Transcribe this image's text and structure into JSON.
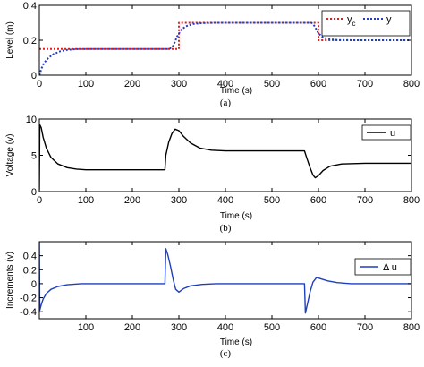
{
  "chart_data": [
    {
      "type": "line",
      "panel_label": "(a)",
      "xlabel": "Time (s)",
      "ylabel": "Level (m)",
      "xlim": [
        0,
        800
      ],
      "ylim": [
        0,
        0.4
      ],
      "xticks": [
        0,
        100,
        200,
        300,
        400,
        500,
        600,
        700,
        800
      ],
      "yticks": [
        0,
        0.2,
        0.4
      ],
      "ytick_labels": [
        "0",
        "0.2",
        "0.4"
      ],
      "grid": false,
      "legend": "top-right",
      "series": [
        {
          "name": "yc",
          "name_main": "y",
          "name_sub": "c",
          "color": "#e41a1c",
          "style": "dotted",
          "points": [
            [
              0,
              0.15
            ],
            [
              300,
              0.15
            ],
            [
              300,
              0.3
            ],
            [
              600,
              0.3
            ],
            [
              600,
              0.2
            ],
            [
              800,
              0.2
            ]
          ]
        },
        {
          "name": "y",
          "color": "#1f3fbf",
          "style": "dotted",
          "points": [
            [
              0,
              0.0
            ],
            [
              5,
              0.04
            ],
            [
              10,
              0.07
            ],
            [
              20,
              0.1
            ],
            [
              30,
              0.12
            ],
            [
              45,
              0.137
            ],
            [
              60,
              0.145
            ],
            [
              80,
              0.149
            ],
            [
              100,
              0.15
            ],
            [
              280,
              0.15
            ],
            [
              288,
              0.17
            ],
            [
              296,
              0.22
            ],
            [
              305,
              0.26
            ],
            [
              315,
              0.28
            ],
            [
              330,
              0.293
            ],
            [
              350,
              0.298
            ],
            [
              380,
              0.3
            ],
            [
              585,
              0.3
            ],
            [
              592,
              0.28
            ],
            [
              600,
              0.24
            ],
            [
              610,
              0.215
            ],
            [
              625,
              0.205
            ],
            [
              645,
              0.201
            ],
            [
              680,
              0.2
            ],
            [
              800,
              0.2
            ]
          ]
        }
      ]
    },
    {
      "type": "line",
      "panel_label": "(b)",
      "xlabel": "Time (s)",
      "ylabel": "Voltage (v)",
      "xlim": [
        0,
        800
      ],
      "ylim": [
        0,
        10
      ],
      "xticks": [
        0,
        100,
        200,
        300,
        400,
        500,
        600,
        700,
        800
      ],
      "yticks": [
        0,
        5,
        10
      ],
      "ytick_labels": [
        "0",
        "5",
        "10"
      ],
      "grid": false,
      "legend": "top-right",
      "series": [
        {
          "name": "u",
          "color": "#000000",
          "style": "solid",
          "points": [
            [
              0,
              0.2
            ],
            [
              1,
              9.2
            ],
            [
              4,
              8.8
            ],
            [
              8,
              7.5
            ],
            [
              15,
              6.0
            ],
            [
              25,
              4.7
            ],
            [
              40,
              3.8
            ],
            [
              60,
              3.3
            ],
            [
              80,
              3.1
            ],
            [
              100,
              3.0
            ],
            [
              270,
              3.0
            ],
            [
              272,
              5.0
            ],
            [
              278,
              6.8
            ],
            [
              285,
              8.0
            ],
            [
              292,
              8.6
            ],
            [
              300,
              8.4
            ],
            [
              310,
              7.6
            ],
            [
              325,
              6.7
            ],
            [
              345,
              6.0
            ],
            [
              370,
              5.7
            ],
            [
              400,
              5.6
            ],
            [
              570,
              5.6
            ],
            [
              575,
              4.6
            ],
            [
              582,
              3.3
            ],
            [
              588,
              2.3
            ],
            [
              593,
              1.9
            ],
            [
              600,
              2.2
            ],
            [
              610,
              2.9
            ],
            [
              625,
              3.5
            ],
            [
              650,
              3.8
            ],
            [
              700,
              3.9
            ],
            [
              800,
              3.9
            ]
          ]
        }
      ]
    },
    {
      "type": "line",
      "panel_label": "(c)",
      "xlabel": "Time (s)",
      "ylabel": "Increments (v)",
      "xlim": [
        0,
        800
      ],
      "ylim": [
        -0.5,
        0.6
      ],
      "xticks": [
        100,
        200,
        300,
        400,
        500,
        600,
        700,
        800
      ],
      "yticks": [
        -0.4,
        -0.2,
        0,
        0.2,
        0.4
      ],
      "ytick_labels": [
        "-0.4",
        "-0.2",
        "0",
        "0.2",
        "0.4"
      ],
      "grid": false,
      "legend": "top-right",
      "series": [
        {
          "name": "Δ u",
          "color": "#1f3fbf",
          "style": "solid",
          "points": [
            [
              0,
              0.6
            ],
            [
              1,
              -0.38
            ],
            [
              4,
              -0.3
            ],
            [
              8,
              -0.22
            ],
            [
              15,
              -0.14
            ],
            [
              25,
              -0.08
            ],
            [
              40,
              -0.04
            ],
            [
              60,
              -0.015
            ],
            [
              90,
              0.0
            ],
            [
              270,
              0.0
            ],
            [
              272,
              0.5
            ],
            [
              276,
              0.42
            ],
            [
              282,
              0.25
            ],
            [
              288,
              0.05
            ],
            [
              293,
              -0.08
            ],
            [
              300,
              -0.12
            ],
            [
              310,
              -0.07
            ],
            [
              325,
              -0.03
            ],
            [
              350,
              -0.01
            ],
            [
              380,
              0.0
            ],
            [
              570,
              0.0
            ],
            [
              572,
              -0.42
            ],
            [
              576,
              -0.3
            ],
            [
              582,
              -0.12
            ],
            [
              588,
              0.02
            ],
            [
              596,
              0.09
            ],
            [
              605,
              0.07
            ],
            [
              620,
              0.04
            ],
            [
              640,
              0.015
            ],
            [
              670,
              0.0
            ],
            [
              800,
              0.0
            ]
          ]
        }
      ]
    }
  ]
}
